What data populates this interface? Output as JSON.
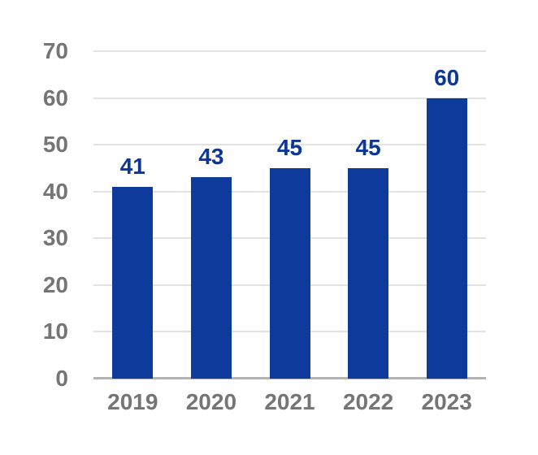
{
  "chart_data": {
    "type": "bar",
    "categories": [
      "2019",
      "2020",
      "2021",
      "2022",
      "2023"
    ],
    "values": [
      41,
      43,
      45,
      45,
      60
    ],
    "data_labels": [
      "41",
      "43",
      "45",
      "45",
      "60"
    ],
    "title": "",
    "xlabel": "",
    "ylabel": "",
    "ylim": [
      0,
      70
    ],
    "yticks": [
      0,
      10,
      20,
      30,
      40,
      50,
      60,
      70
    ],
    "grid": "horizontal",
    "legend": "none",
    "colors": {
      "bar": "#0d3a9b",
      "data_label": "#0c3697",
      "axis_label": "#757575",
      "gridline": "#e2e2e2",
      "baseline": "#b3b3b3",
      "background": "#ffffff"
    }
  }
}
